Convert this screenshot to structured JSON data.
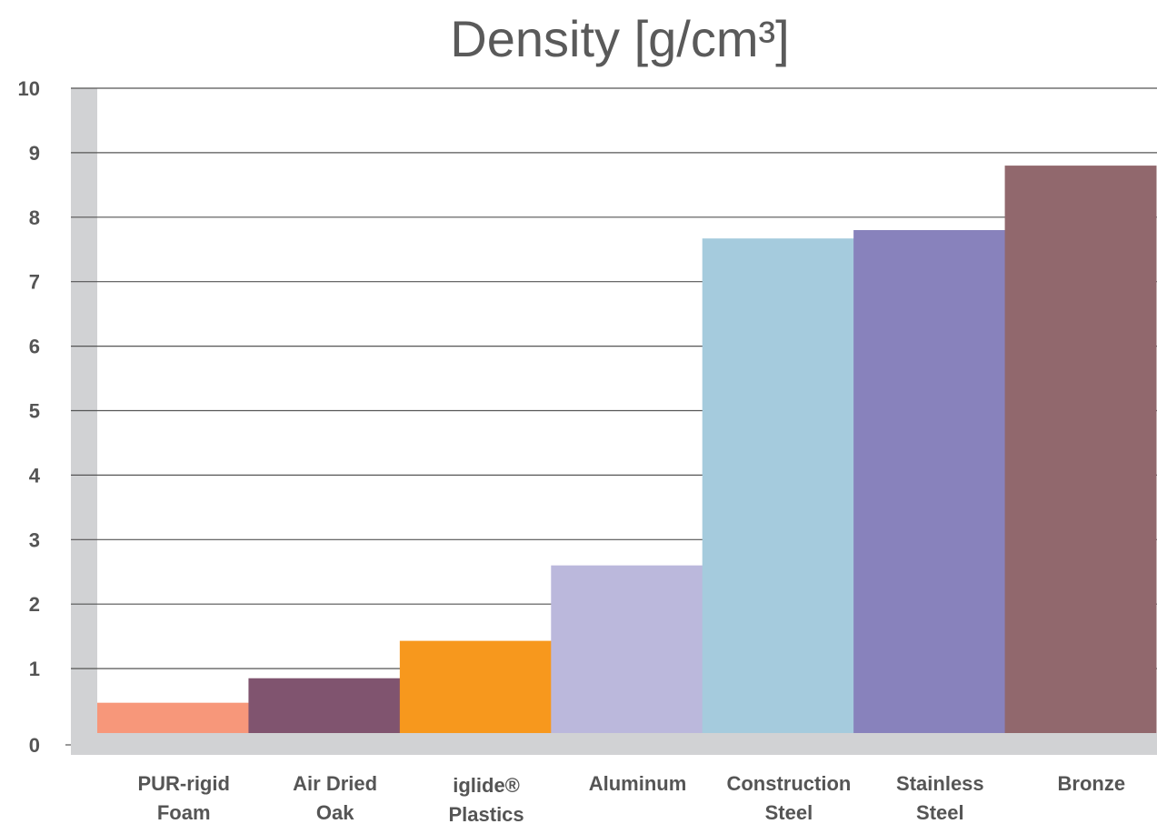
{
  "chart_data": {
    "type": "bar",
    "title": "Density [g/cm³]",
    "xlabel": "",
    "ylabel": "",
    "ylim": [
      0,
      10
    ],
    "yticks": [
      "0",
      "1",
      "2",
      "3",
      "4",
      "5",
      "6",
      "7",
      "8",
      "9",
      "10"
    ],
    "grid": true,
    "legend": "none",
    "categories": [
      [
        "PUR-rigid",
        "Foam"
      ],
      [
        "Air Dried",
        "Oak"
      ],
      [
        "iglide®",
        "Plastics"
      ],
      [
        "Aluminum"
      ],
      [
        "Construction",
        "Steel"
      ],
      [
        "Stainless",
        "Steel"
      ],
      [
        "Bronze"
      ]
    ],
    "values": [
      0.47,
      0.85,
      1.43,
      2.6,
      7.67,
      7.8,
      8.8
    ],
    "colors": [
      "#f7977a",
      "#80546f",
      "#f7981d",
      "#bbb8dc",
      "#a5cbdd",
      "#8882bc",
      "#91686d"
    ]
  }
}
